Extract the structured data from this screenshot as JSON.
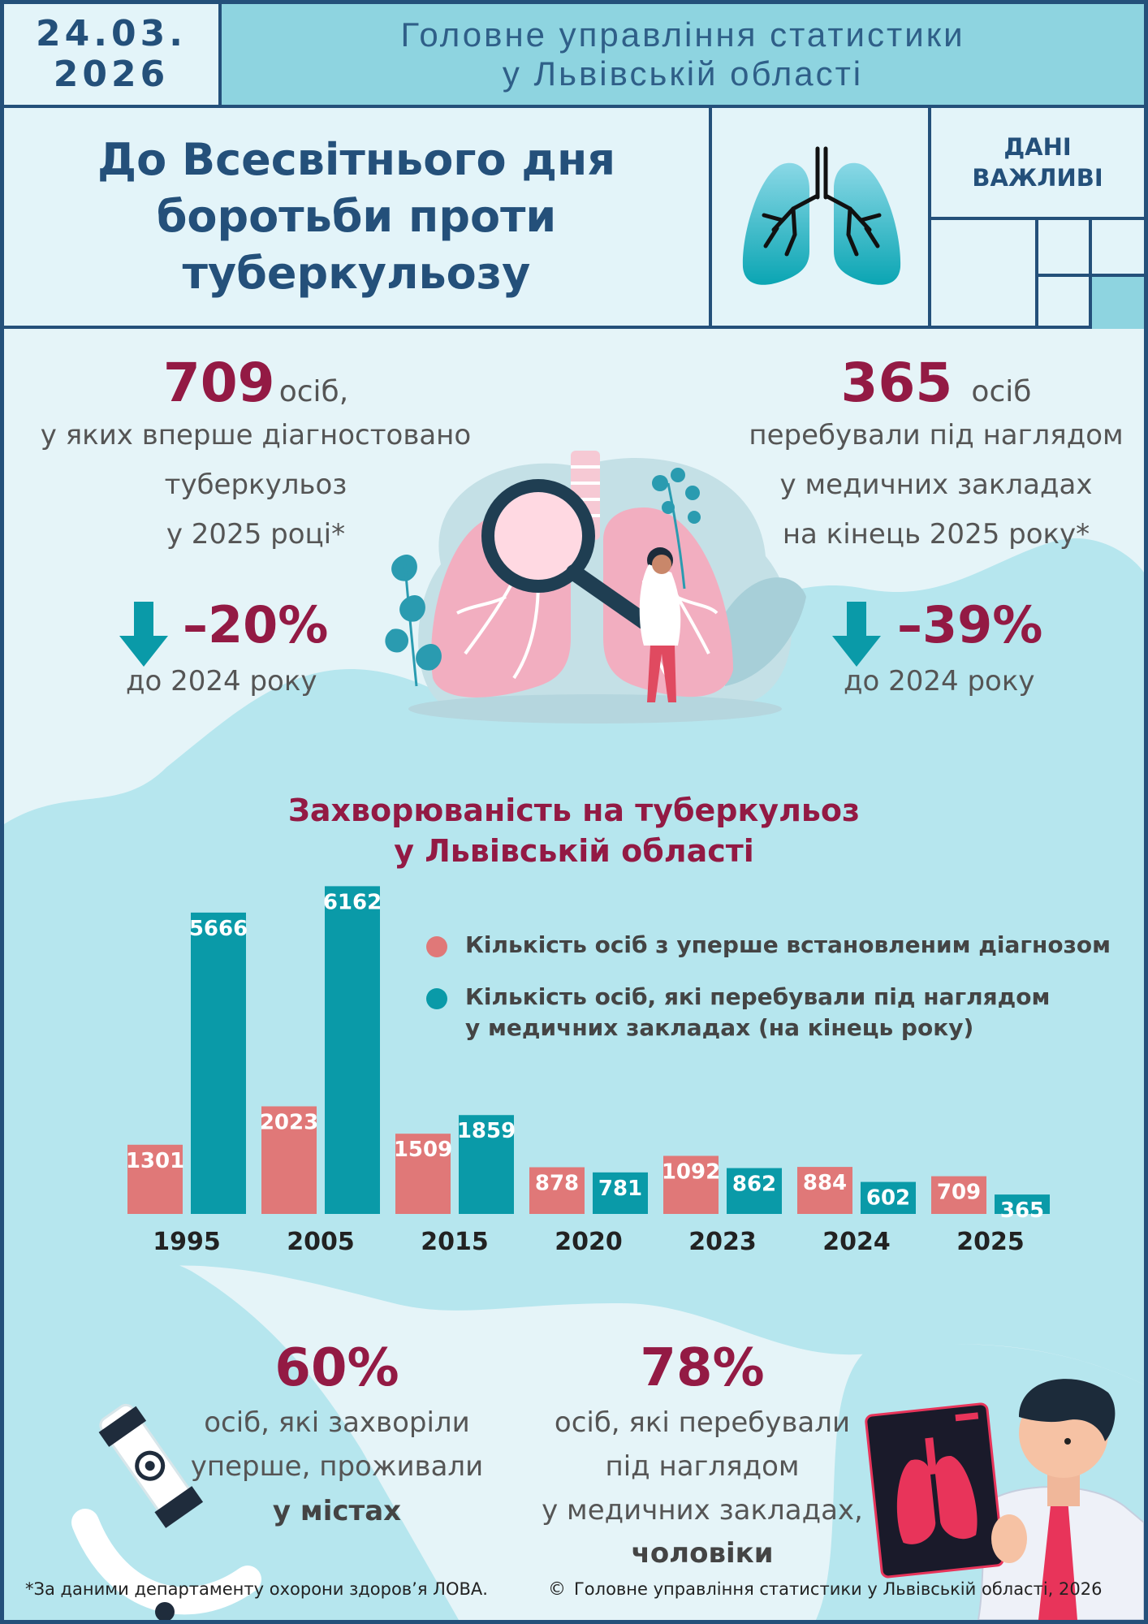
{
  "header": {
    "date": "24.03.\n2026",
    "organization": "Головне управління статистики\nу Львівській області"
  },
  "title": "До Всесвітнього дня\nборотьби проти\nтуберкульозу",
  "badge": "ДАНІ\nВАЖЛИВІ",
  "stats": {
    "new_cases": {
      "value": "709",
      "unit": "осіб,",
      "description": "у яких вперше діагностовано\nтуберкульоз\nу 2025 році*",
      "change": "–20%",
      "change_note": "до 2024 року"
    },
    "observed": {
      "value": "365",
      "unit": "осіб",
      "description": "перебували під наглядом\nу медичних закладах\nна кінець 2025 року*",
      "change": "–39%",
      "change_note": "до 2024 року"
    },
    "urban": {
      "value": "60%",
      "description": "осіб, які захворіли\nуперше, проживали",
      "emphasis": "у містах"
    },
    "men": {
      "value": "78%",
      "description": "осіб, які перебували\nпід наглядом\nу медичних закладах,",
      "emphasis": "чоловіки"
    }
  },
  "colors": {
    "navy": "#24507a",
    "crimson": "#931a44",
    "teal": "#0a9aa8",
    "salmon": "#e07878",
    "light_teal": "#b6e6ee"
  },
  "chart_data": {
    "type": "bar",
    "title": "Захворюваність на туберкульоз\nу Львівській області",
    "categories": [
      "1995",
      "2005",
      "2015",
      "2020",
      "2023",
      "2024",
      "2025"
    ],
    "series": [
      {
        "name": "Кількість осіб з уперше встановленим діагнозом",
        "color": "#e07878",
        "values": [
          1301,
          2023,
          1509,
          878,
          1092,
          884,
          709
        ]
      },
      {
        "name": "Кількість осіб, які перебували під наглядом\nу медичних закладах (на кінець року)",
        "color": "#0a9aa8",
        "values": [
          5666,
          6162,
          1859,
          781,
          862,
          602,
          365
        ]
      }
    ],
    "xlabel": "",
    "ylabel": "",
    "data_labels": true,
    "legend": "top-right",
    "grid": false
  },
  "footer": {
    "source": "*За даними департаменту охорони здоров’я ЛОВА.",
    "copyright_symbol": "©",
    "copyright": "Головне управління статистики у Львівській області, 2026"
  }
}
